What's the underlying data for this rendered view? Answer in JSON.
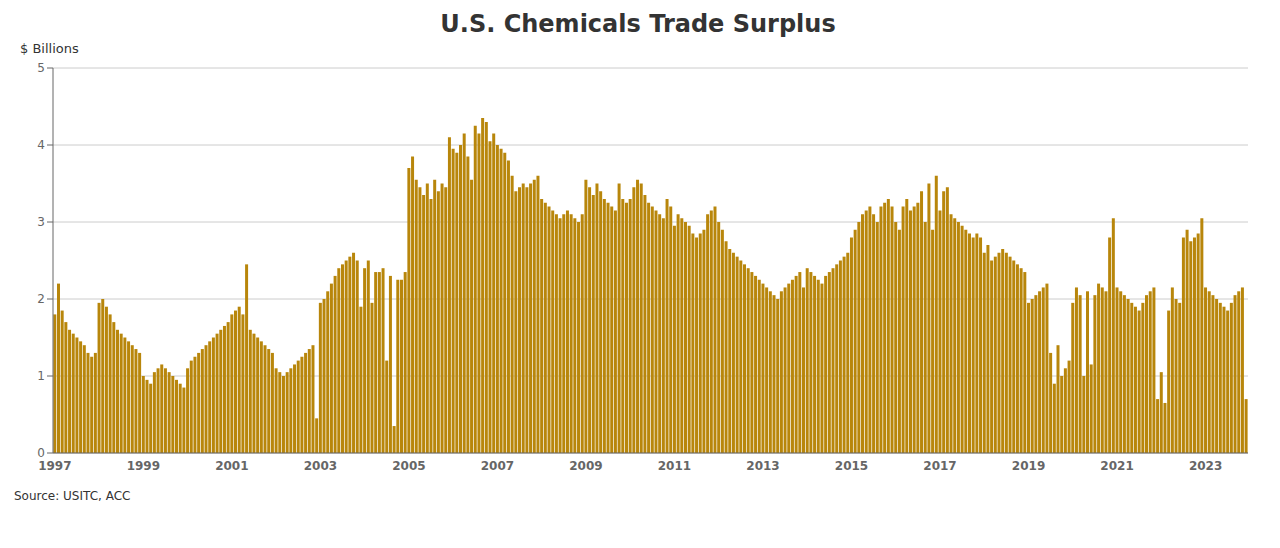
{
  "chart_data": {
    "type": "bar",
    "title": "U.S. Chemicals Trade Surplus",
    "ylabel": "$ Billions",
    "annotations": [
      "Source: USITC, ACC"
    ],
    "color": "#B8860B",
    "ylim": [
      0,
      5
    ],
    "yticks": [
      0,
      1,
      2,
      3,
      4,
      5
    ],
    "grid": true,
    "categories": [
      "1997",
      null,
      null,
      null,
      null,
      null,
      null,
      null,
      null,
      null,
      null,
      null,
      null,
      null,
      null,
      null,
      null,
      null,
      null,
      null,
      null,
      null,
      null,
      null,
      "1999",
      null,
      null,
      null,
      null,
      null,
      null,
      null,
      null,
      null,
      null,
      null,
      null,
      null,
      null,
      null,
      null,
      null,
      null,
      null,
      null,
      null,
      null,
      null,
      "2001",
      null,
      null,
      null,
      null,
      null,
      null,
      null,
      null,
      null,
      null,
      null,
      null,
      null,
      null,
      null,
      null,
      null,
      null,
      null,
      null,
      null,
      null,
      null,
      "2003",
      null,
      null,
      null,
      null,
      null,
      null,
      null,
      null,
      null,
      null,
      null,
      null,
      null,
      null,
      null,
      null,
      null,
      null,
      null,
      null,
      null,
      null,
      null,
      "2005",
      null,
      null,
      null,
      null,
      null,
      null,
      null,
      null,
      null,
      null,
      null,
      null,
      null,
      null,
      null,
      null,
      null,
      null,
      null,
      null,
      null,
      null,
      null,
      "2007",
      null,
      null,
      null,
      null,
      null,
      null,
      null,
      null,
      null,
      null,
      null,
      null,
      null,
      null,
      null,
      null,
      null,
      null,
      null,
      null,
      null,
      null,
      null,
      "2009",
      null,
      null,
      null,
      null,
      null,
      null,
      null,
      null,
      null,
      null,
      null,
      null,
      null,
      null,
      null,
      null,
      null,
      null,
      null,
      null,
      null,
      null,
      null,
      "2011",
      null,
      null,
      null,
      null,
      null,
      null,
      null,
      null,
      null,
      null,
      null,
      null,
      null,
      null,
      null,
      null,
      null,
      null,
      null,
      null,
      null,
      null,
      null,
      "2013",
      null,
      null,
      null,
      null,
      null,
      null,
      null,
      null,
      null,
      null,
      null,
      null,
      null,
      null,
      null,
      null,
      null,
      null,
      null,
      null,
      null,
      null,
      null,
      "2015",
      null,
      null,
      null,
      null,
      null,
      null,
      null,
      null,
      null,
      null,
      null,
      null,
      null,
      null,
      null,
      null,
      null,
      null,
      null,
      null,
      null,
      null,
      null,
      "2017",
      null,
      null,
      null,
      null,
      null,
      null,
      null,
      null,
      null,
      null,
      null,
      null,
      null,
      null,
      null,
      null,
      null,
      null,
      null,
      null,
      null,
      null,
      null,
      "2019",
      null,
      null,
      null,
      null,
      null,
      null,
      null,
      null,
      null,
      null,
      null,
      null,
      null,
      null,
      null,
      null,
      null,
      null,
      null,
      null,
      null,
      null,
      null,
      "2021",
      null,
      null,
      null,
      null,
      null,
      null,
      null,
      null,
      null,
      null,
      null,
      null,
      null,
      null,
      null,
      null,
      null,
      null,
      null,
      null,
      null,
      null,
      null,
      "2023",
      null,
      null,
      null,
      null,
      null,
      null,
      null,
      null,
      null,
      null,
      null
    ],
    "values": [
      1.8,
      2.2,
      1.85,
      1.7,
      1.6,
      1.55,
      1.5,
      1.45,
      1.4,
      1.3,
      1.25,
      1.3,
      1.95,
      2.0,
      1.9,
      1.8,
      1.7,
      1.6,
      1.55,
      1.5,
      1.45,
      1.4,
      1.35,
      1.3,
      1.0,
      0.95,
      0.9,
      1.05,
      1.1,
      1.15,
      1.1,
      1.05,
      1.0,
      0.95,
      0.9,
      0.85,
      1.1,
      1.2,
      1.25,
      1.3,
      1.35,
      1.4,
      1.45,
      1.5,
      1.55,
      1.6,
      1.65,
      1.7,
      1.8,
      1.85,
      1.9,
      1.8,
      2.45,
      1.6,
      1.55,
      1.5,
      1.45,
      1.4,
      1.35,
      1.3,
      1.1,
      1.05,
      1.0,
      1.05,
      1.1,
      1.15,
      1.2,
      1.25,
      1.3,
      1.35,
      1.4,
      0.45,
      1.95,
      2.0,
      2.1,
      2.2,
      2.3,
      2.4,
      2.45,
      2.5,
      2.55,
      2.6,
      2.5,
      1.9,
      2.4,
      2.5,
      1.95,
      2.35,
      2.35,
      2.4,
      1.2,
      2.3,
      0.35,
      2.25,
      2.25,
      2.35,
      3.7,
      3.85,
      3.55,
      3.45,
      3.35,
      3.5,
      3.3,
      3.55,
      3.4,
      3.5,
      3.45,
      4.1,
      3.95,
      3.9,
      4.0,
      4.15,
      3.85,
      3.55,
      4.25,
      4.15,
      4.35,
      4.3,
      4.05,
      4.15,
      4.0,
      3.95,
      3.9,
      3.8,
      3.6,
      3.4,
      3.45,
      3.5,
      3.45,
      3.5,
      3.55,
      3.6,
      3.3,
      3.25,
      3.2,
      3.15,
      3.1,
      3.05,
      3.1,
      3.15,
      3.1,
      3.05,
      3.0,
      3.1,
      3.55,
      3.45,
      3.35,
      3.5,
      3.4,
      3.3,
      3.25,
      3.2,
      3.15,
      3.5,
      3.3,
      3.25,
      3.3,
      3.45,
      3.55,
      3.5,
      3.35,
      3.25,
      3.2,
      3.15,
      3.1,
      3.05,
      3.3,
      3.2,
      2.95,
      3.1,
      3.05,
      3.0,
      2.95,
      2.85,
      2.8,
      2.85,
      2.9,
      3.1,
      3.15,
      3.2,
      3.0,
      2.9,
      2.75,
      2.65,
      2.6,
      2.55,
      2.5,
      2.45,
      2.4,
      2.35,
      2.3,
      2.25,
      2.2,
      2.15,
      2.1,
      2.05,
      2.0,
      2.1,
      2.15,
      2.2,
      2.25,
      2.3,
      2.35,
      2.15,
      2.4,
      2.35,
      2.3,
      2.25,
      2.2,
      2.3,
      2.35,
      2.4,
      2.45,
      2.5,
      2.55,
      2.6,
      2.8,
      2.9,
      3.0,
      3.1,
      3.15,
      3.2,
      3.1,
      3.0,
      3.2,
      3.25,
      3.3,
      3.2,
      3.0,
      2.9,
      3.2,
      3.3,
      3.15,
      3.2,
      3.25,
      3.4,
      3.0,
      3.5,
      2.9,
      3.6,
      3.15,
      3.4,
      3.45,
      3.1,
      3.05,
      3.0,
      2.95,
      2.9,
      2.85,
      2.8,
      2.85,
      2.8,
      2.6,
      2.7,
      2.5,
      2.55,
      2.6,
      2.65,
      2.6,
      2.55,
      2.5,
      2.45,
      2.4,
      2.35,
      1.95,
      2.0,
      2.05,
      2.1,
      2.15,
      2.2,
      1.3,
      0.9,
      1.4,
      1.0,
      1.1,
      1.2,
      1.95,
      2.15,
      2.05,
      1.0,
      2.1,
      1.15,
      2.05,
      2.2,
      2.15,
      2.1,
      2.8,
      3.05,
      2.15,
      2.1,
      2.05,
      2.0,
      1.95,
      1.9,
      1.85,
      1.95,
      2.05,
      2.1,
      2.15,
      0.7,
      1.05,
      0.65,
      1.85,
      2.15,
      2.0,
      1.95,
      2.8,
      2.9,
      2.75,
      2.8,
      2.85,
      3.05,
      2.15,
      2.1,
      2.05,
      2.0,
      1.95,
      1.9,
      1.85,
      1.95,
      2.05,
      2.1,
      2.15,
      0.7
    ]
  }
}
